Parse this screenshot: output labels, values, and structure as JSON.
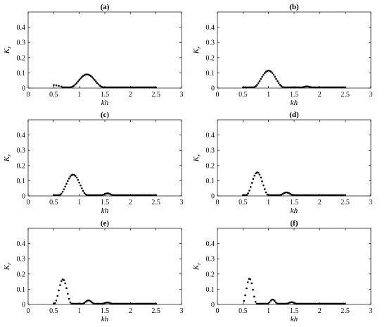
{
  "chart_data": [
    {
      "type": "scatter",
      "title": "(a)",
      "xlabel": "kh",
      "ylabel_main": "K",
      "ylabel_sub": "r",
      "xlim": [
        0,
        3
      ],
      "ylim": [
        0,
        0.5
      ],
      "xticks": [
        0,
        0.5,
        1,
        1.5,
        2,
        2.5,
        3
      ],
      "yticks": [
        0,
        0.1,
        0.2,
        0.3,
        0.4
      ],
      "shape": {
        "start": 0.5,
        "end": 2.5,
        "pre": [
          [
            0.5,
            0.02
          ],
          [
            0.55,
            0.018
          ],
          [
            0.6,
            0.015
          ],
          [
            0.65,
            0.01
          ]
        ],
        "bumps": [
          {
            "c": 1.15,
            "w": 0.33,
            "h": 0.085
          }
        ],
        "tail": 0.005
      }
    },
    {
      "type": "scatter",
      "title": "(b)",
      "xlabel": "kh",
      "ylabel_main": "K",
      "ylabel_sub": "r",
      "xlim": [
        0,
        3
      ],
      "ylim": [
        0,
        0.5
      ],
      "xticks": [
        0,
        0.5,
        1,
        1.5,
        2,
        2.5,
        3
      ],
      "yticks": [
        0,
        0.1,
        0.2,
        0.3,
        0.4
      ],
      "shape": {
        "start": 0.5,
        "end": 2.5,
        "pre": [],
        "bumps": [
          {
            "c": 1.0,
            "w": 0.3,
            "h": 0.11
          },
          {
            "c": 1.75,
            "w": 0.1,
            "h": 0.006
          }
        ],
        "tail": 0.005
      }
    },
    {
      "type": "scatter",
      "title": "(c)",
      "xlabel": "kh",
      "ylabel_main": "K",
      "ylabel_sub": "r",
      "xlim": [
        0,
        3
      ],
      "ylim": [
        0,
        0.5
      ],
      "xticks": [
        0,
        0.5,
        1,
        1.5,
        2,
        2.5,
        3
      ],
      "yticks": [
        0,
        0.1,
        0.2,
        0.3,
        0.4
      ],
      "shape": {
        "start": 0.5,
        "end": 2.5,
        "pre": [],
        "bumps": [
          {
            "c": 0.88,
            "w": 0.28,
            "h": 0.135
          },
          {
            "c": 1.55,
            "w": 0.12,
            "h": 0.012
          }
        ],
        "tail": 0.005
      }
    },
    {
      "type": "scatter",
      "title": "(d)",
      "xlabel": "kh",
      "ylabel_main": "K",
      "ylabel_sub": "r",
      "xlim": [
        0,
        3
      ],
      "ylim": [
        0,
        0.5
      ],
      "xticks": [
        0,
        0.5,
        1,
        1.5,
        2,
        2.5,
        3
      ],
      "yticks": [
        0,
        0.1,
        0.2,
        0.3,
        0.4
      ],
      "shape": {
        "start": 0.5,
        "end": 2.5,
        "pre": [],
        "bumps": [
          {
            "c": 0.78,
            "w": 0.22,
            "h": 0.15
          },
          {
            "c": 1.35,
            "w": 0.14,
            "h": 0.018
          }
        ],
        "tail": 0.005
      }
    },
    {
      "type": "scatter",
      "title": "(e)",
      "xlabel": "kh",
      "ylabel_main": "K",
      "ylabel_sub": "r",
      "xlim": [
        0,
        3
      ],
      "ylim": [
        0,
        0.5
      ],
      "xticks": [
        0,
        0.5,
        1,
        1.5,
        2,
        2.5,
        3
      ],
      "yticks": [
        0,
        0.1,
        0.2,
        0.3,
        0.4
      ],
      "shape": {
        "start": 0.5,
        "end": 2.5,
        "pre": [],
        "bumps": [
          {
            "c": 0.68,
            "w": 0.17,
            "h": 0.16
          },
          {
            "c": 1.18,
            "w": 0.12,
            "h": 0.022
          },
          {
            "c": 1.55,
            "w": 0.1,
            "h": 0.008
          }
        ],
        "tail": 0.005
      }
    },
    {
      "type": "scatter",
      "title": "(f)",
      "xlabel": "kh",
      "ylabel_main": "K",
      "ylabel_sub": "r",
      "xlim": [
        0,
        3
      ],
      "ylim": [
        0,
        0.5
      ],
      "xticks": [
        0,
        0.5,
        1,
        1.5,
        2,
        2.5,
        3
      ],
      "yticks": [
        0,
        0.1,
        0.2,
        0.3,
        0.4
      ],
      "shape": {
        "start": 0.52,
        "end": 2.5,
        "pre": [],
        "bumps": [
          {
            "c": 0.63,
            "w": 0.14,
            "h": 0.165
          },
          {
            "c": 1.08,
            "w": 0.1,
            "h": 0.028
          },
          {
            "c": 1.45,
            "w": 0.1,
            "h": 0.01
          }
        ],
        "tail": 0.005
      }
    }
  ]
}
